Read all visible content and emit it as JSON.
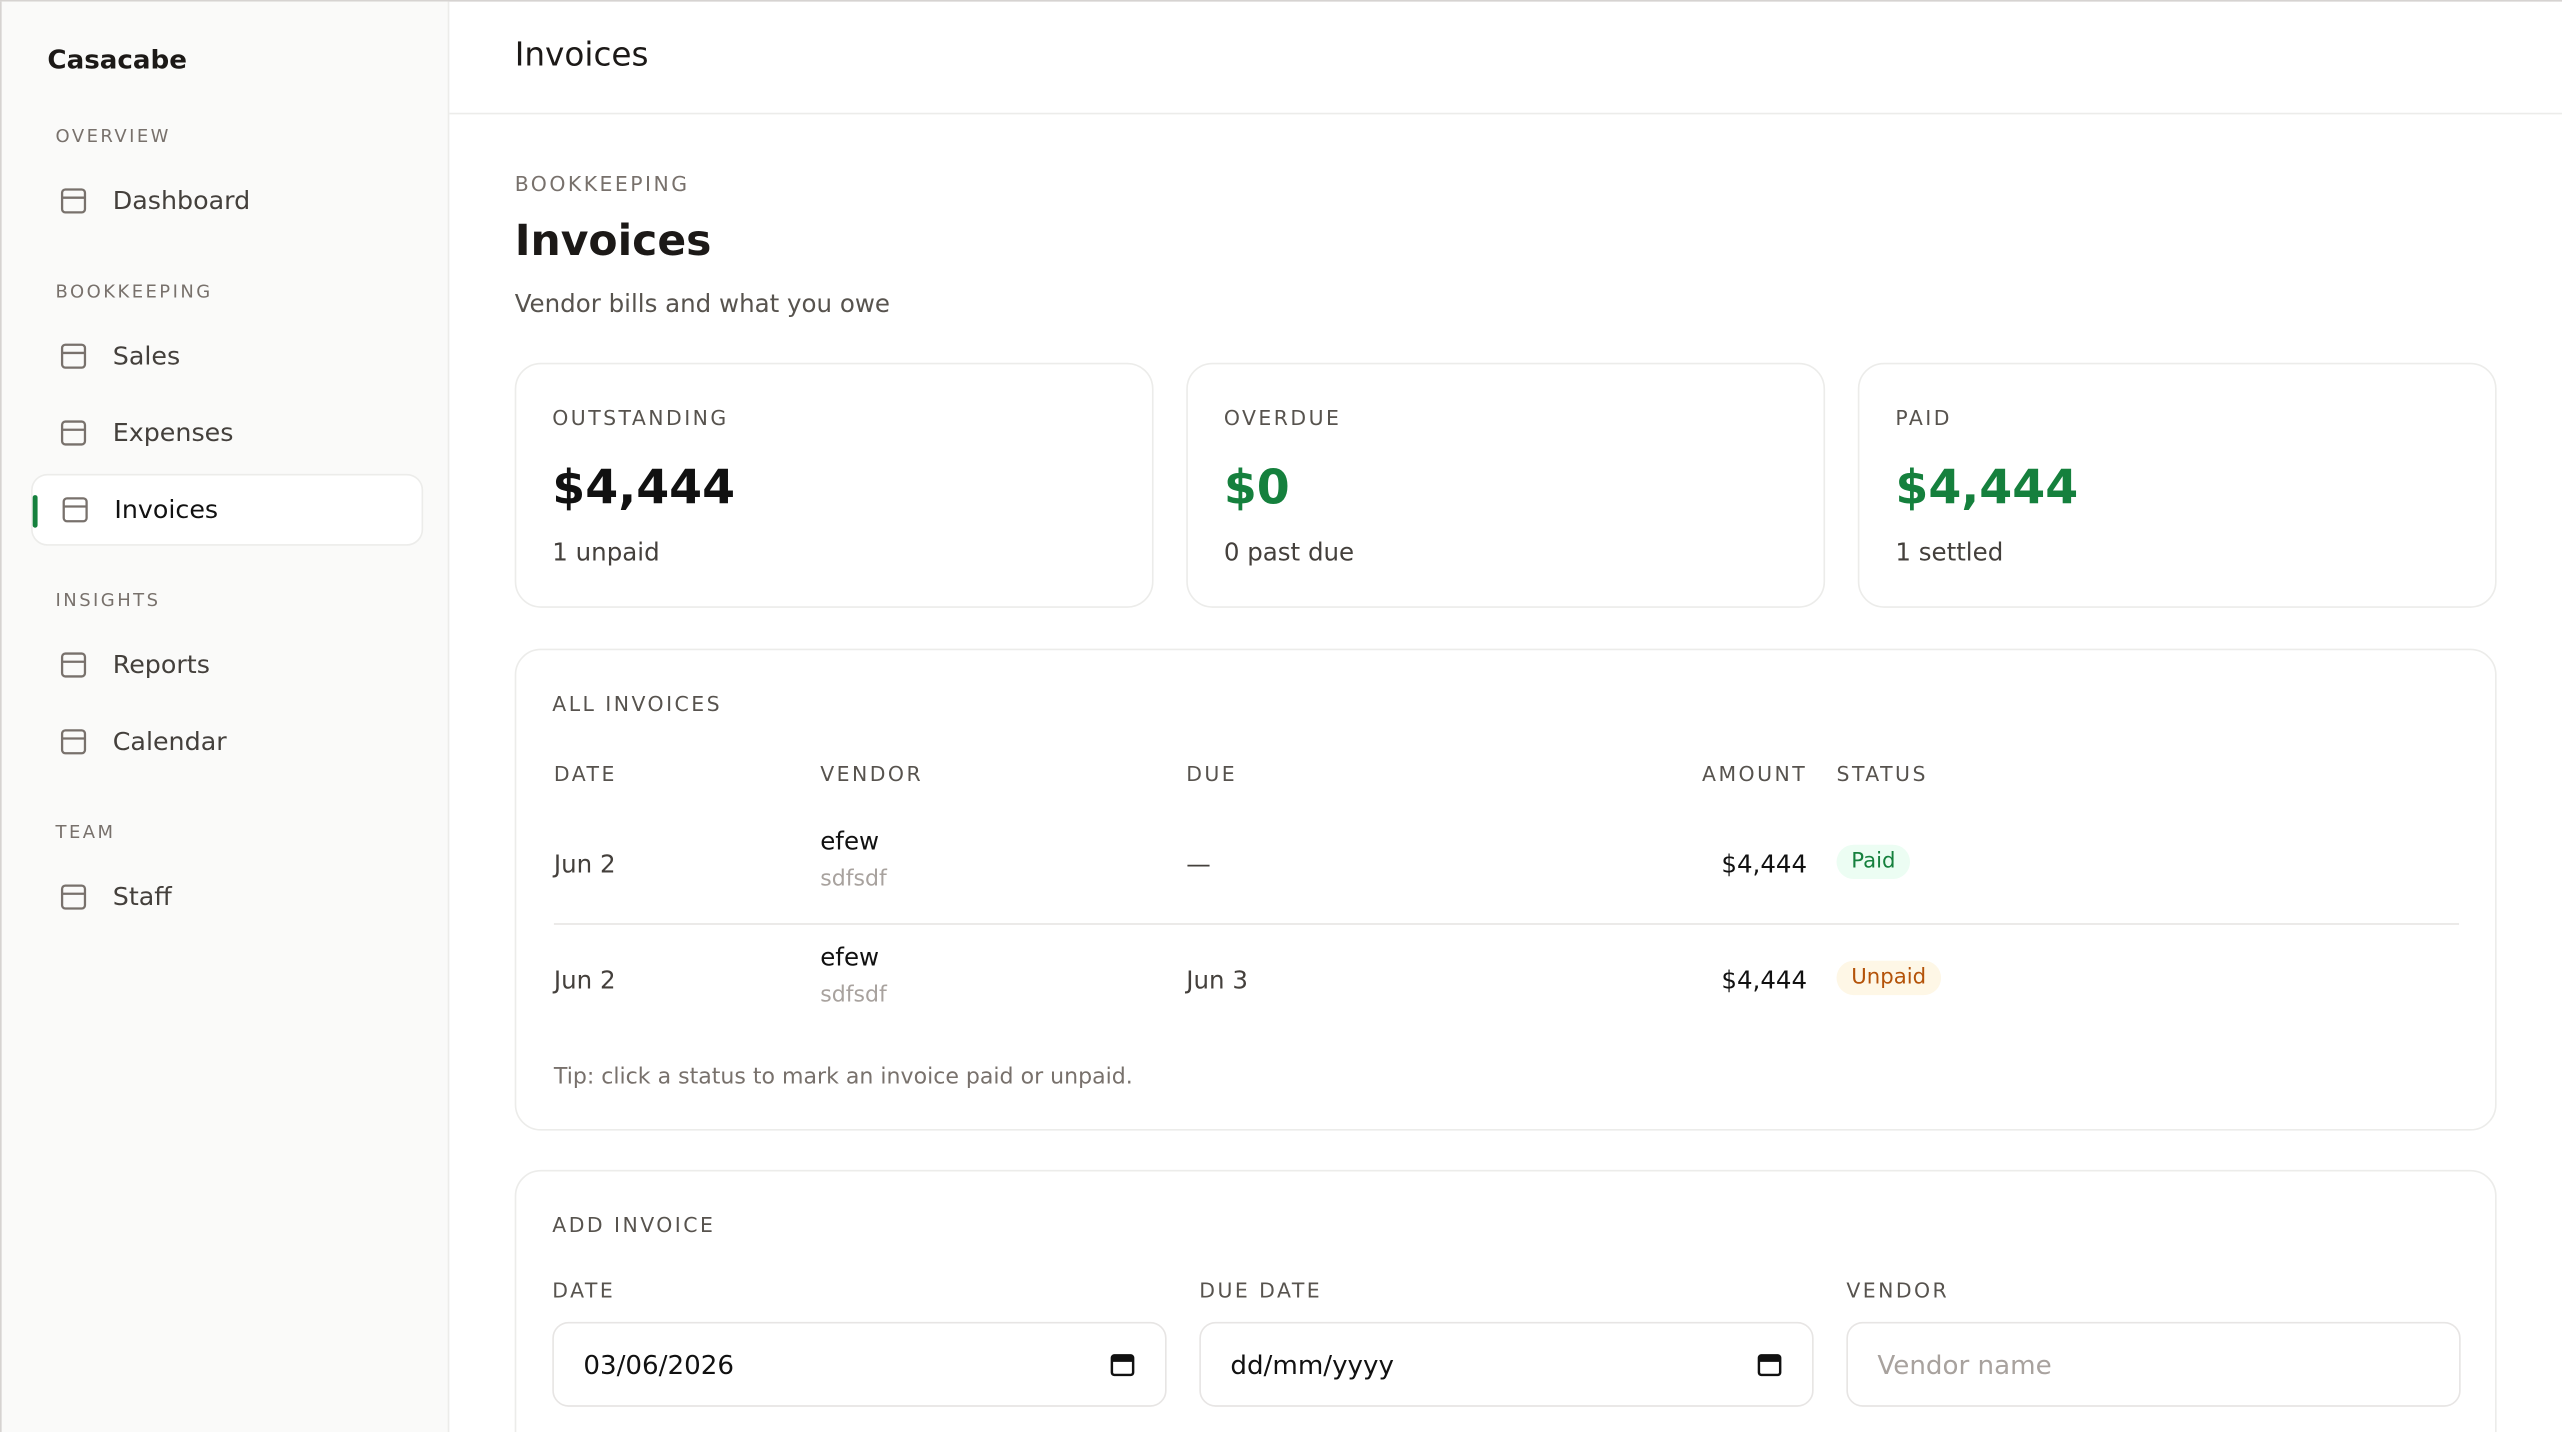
{
  "sidebar": {
    "brand": "Casacabe",
    "sections": [
      {
        "title": "OVERVIEW",
        "items": [
          "Dashboard"
        ]
      },
      {
        "title": "BOOKKEEPING",
        "items": [
          "Sales",
          "Expenses",
          "Invoices"
        ]
      },
      {
        "title": "INSIGHTS",
        "items": [
          "Reports",
          "Calendar"
        ]
      },
      {
        "title": "TEAM",
        "items": [
          "Staff"
        ]
      }
    ],
    "active": "Invoices"
  },
  "header": {
    "title": "Invoices"
  },
  "page": {
    "eyebrow": "BOOKKEEPING",
    "title": "Invoices",
    "subtitle": "Vendor bills and what you owe"
  },
  "stats": [
    {
      "label": "OUTSTANDING",
      "value": "$4,444",
      "note": "1 unpaid",
      "color": "#111111"
    },
    {
      "label": "OVERDUE",
      "value": "$0",
      "note": "0 past due",
      "color": "#15803d"
    },
    {
      "label": "PAID",
      "value": "$4,444",
      "note": "1 settled",
      "color": "#15803d"
    }
  ],
  "table": {
    "title": "ALL INVOICES",
    "columns": [
      "DATE",
      "VENDOR",
      "DUE",
      "AMOUNT",
      "STATUS"
    ],
    "rows": [
      {
        "date": "Jun 2",
        "vendor": "efew",
        "memo": "sdfsdf",
        "due": "—",
        "amount": "$4,444",
        "status": "Paid"
      },
      {
        "date": "Jun 2",
        "vendor": "efew",
        "memo": "sdfsdf",
        "due": "Jun 3",
        "amount": "$4,444",
        "status": "Unpaid"
      }
    ],
    "tip": "Tip: click a status to mark an invoice paid or unpaid."
  },
  "form": {
    "title": "ADD INVOICE",
    "fields": [
      {
        "label": "DATE",
        "value": "03/06/2026",
        "placeholder": false,
        "date": true
      },
      {
        "label": "DUE DATE",
        "value": "dd/mm/yyyy",
        "placeholder": false,
        "date": true
      },
      {
        "label": "VENDOR",
        "value": "Vendor name",
        "placeholder": true,
        "date": false
      }
    ]
  }
}
